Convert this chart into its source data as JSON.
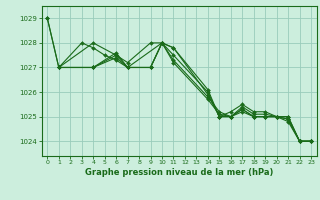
{
  "title": "Graphe pression niveau de la mer (hPa)",
  "background_color": "#cceedd",
  "grid_color": "#99ccbb",
  "line_color": "#1a6b1a",
  "xlim": [
    -0.5,
    23.5
  ],
  "ylim": [
    1023.4,
    1029.5
  ],
  "yticks": [
    1024,
    1025,
    1026,
    1027,
    1028,
    1029
  ],
  "xticks": [
    0,
    1,
    2,
    3,
    4,
    5,
    6,
    7,
    8,
    9,
    10,
    11,
    12,
    13,
    14,
    15,
    16,
    17,
    18,
    19,
    20,
    21,
    22,
    23
  ],
  "series": [
    [
      1029.0,
      1027.0,
      null,
      null,
      1028.0,
      null,
      1027.5,
      1027.2,
      null,
      1028.0,
      1028.0,
      1027.8,
      null,
      null,
      1025.9,
      1025.0,
      1025.0,
      1025.3,
      1025.0,
      1025.0,
      1025.0,
      1024.9,
      1024.0,
      1024.0
    ],
    [
      1029.0,
      1027.0,
      null,
      1028.0,
      1027.8,
      1027.5,
      1027.3,
      1027.0,
      null,
      null,
      1028.0,
      1027.8,
      null,
      null,
      1026.1,
      1025.0,
      1025.0,
      1025.4,
      1025.1,
      1025.1,
      1025.0,
      1025.0,
      1024.0,
      1024.0
    ],
    [
      null,
      1027.0,
      null,
      null,
      1027.0,
      null,
      1027.6,
      1027.0,
      null,
      1027.0,
      1028.0,
      1027.5,
      null,
      null,
      1026.0,
      1025.0,
      1025.2,
      1025.5,
      1025.2,
      1025.2,
      1025.0,
      1025.0,
      1024.0,
      1024.0
    ],
    [
      null,
      1027.0,
      null,
      null,
      1027.0,
      null,
      1027.5,
      1027.0,
      null,
      1027.0,
      1028.0,
      1027.3,
      null,
      null,
      1025.8,
      1025.2,
      1025.0,
      1025.3,
      1025.0,
      1025.0,
      1025.0,
      1024.9,
      1024.0,
      1024.0
    ],
    [
      null,
      1027.0,
      null,
      null,
      1027.0,
      null,
      1027.4,
      1027.0,
      null,
      1027.0,
      1028.0,
      1027.2,
      null,
      null,
      1025.7,
      1025.1,
      1025.0,
      1025.2,
      1025.0,
      1025.0,
      1025.0,
      1024.8,
      1024.0,
      1024.0
    ]
  ],
  "marker": "D",
  "marker_size": 2.0,
  "line_width": 0.8,
  "tick_fontsize": 5.0,
  "xlabel_fontsize": 6.0
}
